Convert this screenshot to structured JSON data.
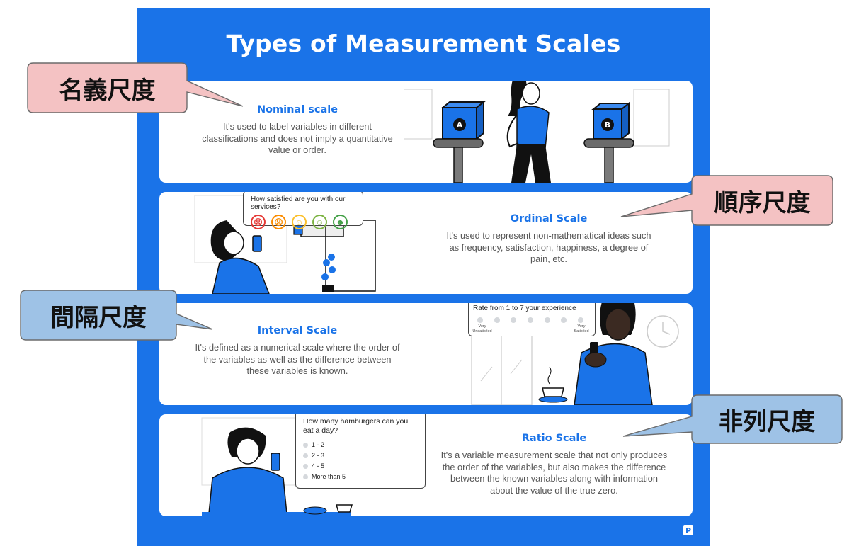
{
  "poster": {
    "title": "Types of Measurement Scales",
    "logo_glyph": "P"
  },
  "colors": {
    "poster_blue": "#1a73e8",
    "pink_tag": "#f4c2c3",
    "blue_tag": "#9ec2e6"
  },
  "cards": [
    {
      "heading": "Nominal scale",
      "description": "It's used to label variables in different classifications and does not imply a quantitative value or order.",
      "box_labels": [
        "A",
        "B"
      ]
    },
    {
      "heading": "Ordinal Scale",
      "description": "It's used to represent non-mathematical ideas such as frequency, satisfaction, happiness, a degree of pain, etc.",
      "survey_question": "How satisfied are you with our services?",
      "survey_faces": [
        "very-unhappy-icon",
        "unhappy-icon",
        "neutral-icon",
        "happy-icon",
        "very-happy-icon"
      ]
    },
    {
      "heading": "Interval Scale",
      "description": "It's defined as a numerical scale where the order of the variables as well as the difference between these variables is known.",
      "rating_question": "Rate from 1 to 7 your experience",
      "rating_low_label": "Very Unsatisfied",
      "rating_high_label": "Very Satisfied"
    },
    {
      "heading": "Ratio Scale",
      "description": "It's a variable measurement scale that not only produces the order of the variables, but also makes the difference between the known variables along with information about the value of the true zero.",
      "question": "How many hamburgers can you eat a day?",
      "options": [
        "1 - 2",
        "2 - 3",
        "4 - 5",
        "More than 5"
      ]
    }
  ],
  "callouts": [
    {
      "text": "名義尺度",
      "color": "pink"
    },
    {
      "text": "順序尺度",
      "color": "pink"
    },
    {
      "text": "間隔尺度",
      "color": "blue"
    },
    {
      "text": "非列尺度",
      "color": "blue"
    }
  ]
}
